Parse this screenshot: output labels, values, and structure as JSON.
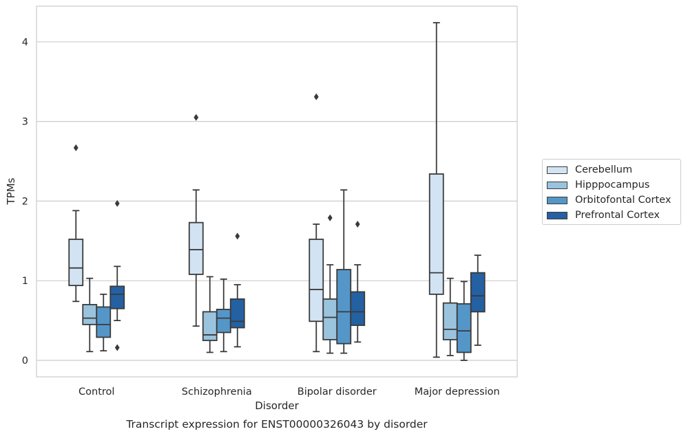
{
  "chart_data": {
    "type": "box",
    "title": "",
    "xlabel": "Disorder",
    "ylabel": "TPMs",
    "caption": "Transcript expression for ENST00000326043 by disorder",
    "categories": [
      "Control",
      "Schizophrenia",
      "Bipolar disorder",
      "Major depression"
    ],
    "y_ticks": [
      "0",
      "1",
      "2",
      "3",
      "4"
    ],
    "ylim": [
      -0.2,
      4.45
    ],
    "grid": "horizontal",
    "legend_position": "right",
    "series": [
      {
        "name": "Cerebellum",
        "color": "#d2e3f3",
        "boxes": [
          {
            "min": 0.74,
            "q1": 0.94,
            "median": 1.16,
            "q3": 1.52,
            "max": 1.88,
            "outliers": [
              2.67
            ]
          },
          {
            "min": 0.43,
            "q1": 1.08,
            "median": 1.39,
            "q3": 1.73,
            "max": 2.14,
            "outliers": [
              3.05
            ]
          },
          {
            "min": 0.11,
            "q1": 0.49,
            "median": 0.89,
            "q3": 1.52,
            "max": 1.71,
            "outliers": [
              3.31
            ]
          },
          {
            "min": 0.04,
            "q1": 0.83,
            "median": 1.1,
            "q3": 2.34,
            "max": 4.24,
            "outliers": []
          }
        ]
      },
      {
        "name": "Hipppocampus",
        "color": "#9ac3de",
        "boxes": [
          {
            "min": 0.11,
            "q1": 0.45,
            "median": 0.53,
            "q3": 0.7,
            "max": 1.03,
            "outliers": []
          },
          {
            "min": 0.1,
            "q1": 0.25,
            "median": 0.32,
            "q3": 0.61,
            "max": 1.05,
            "outliers": []
          },
          {
            "min": 0.09,
            "q1": 0.26,
            "median": 0.54,
            "q3": 0.77,
            "max": 1.2,
            "outliers": [
              1.79
            ]
          },
          {
            "min": 0.06,
            "q1": 0.26,
            "median": 0.39,
            "q3": 0.72,
            "max": 1.03,
            "outliers": []
          }
        ]
      },
      {
        "name": "Orbitofontal Cortex",
        "color": "#5596c9",
        "boxes": [
          {
            "min": 0.12,
            "q1": 0.29,
            "median": 0.45,
            "q3": 0.67,
            "max": 0.83,
            "outliers": []
          },
          {
            "min": 0.11,
            "q1": 0.35,
            "median": 0.53,
            "q3": 0.64,
            "max": 1.02,
            "outliers": []
          },
          {
            "min": 0.09,
            "q1": 0.21,
            "median": 0.61,
            "q3": 1.14,
            "max": 2.14,
            "outliers": []
          },
          {
            "min": 0.0,
            "q1": 0.1,
            "median": 0.37,
            "q3": 0.71,
            "max": 0.99,
            "outliers": []
          }
        ]
      },
      {
        "name": "Prefrontal Cortex",
        "color": "#2461a3",
        "boxes": [
          {
            "min": 0.5,
            "q1": 0.65,
            "median": 0.83,
            "q3": 0.93,
            "max": 1.18,
            "outliers": [
              1.97,
              0.16
            ]
          },
          {
            "min": 0.17,
            "q1": 0.41,
            "median": 0.49,
            "q3": 0.77,
            "max": 0.95,
            "outliers": [
              1.56
            ]
          },
          {
            "min": 0.23,
            "q1": 0.44,
            "median": 0.61,
            "q3": 0.86,
            "max": 1.2,
            "outliers": [
              1.71
            ]
          },
          {
            "min": 0.19,
            "q1": 0.61,
            "median": 0.81,
            "q3": 1.1,
            "max": 1.32,
            "outliers": []
          }
        ]
      }
    ]
  }
}
